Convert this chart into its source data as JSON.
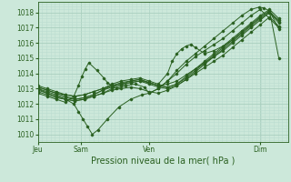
{
  "xlabel": "Pression niveau de la mer( hPa )",
  "bg_color": "#cce8da",
  "plot_bg_color": "#cce8da",
  "grid_color_major": "#aacfbf",
  "grid_color_minor": "#bbddd0",
  "line_color": "#2a6020",
  "ylim": [
    1009.5,
    1018.7
  ],
  "xlim": [
    0.0,
    1.08
  ],
  "xtick_labels": [
    "Jeu",
    "Sam",
    "Ven",
    "Dim"
  ],
  "xtick_positions": [
    0.0,
    0.185,
    0.48,
    0.96
  ],
  "ytick_values": [
    1010,
    1011,
    1012,
    1013,
    1014,
    1015,
    1016,
    1017,
    1018
  ],
  "lines": [
    {
      "x": [
        0.0,
        0.04,
        0.08,
        0.12,
        0.155,
        0.175,
        0.195,
        0.215,
        0.235,
        0.26,
        0.3,
        0.35,
        0.4,
        0.45,
        0.48,
        0.52,
        0.56,
        0.6,
        0.64,
        0.68,
        0.72,
        0.76,
        0.8,
        0.84,
        0.88,
        0.92,
        0.955,
        0.975,
        1.0,
        1.04
      ],
      "y": [
        1013.0,
        1012.7,
        1012.5,
        1012.3,
        1012.0,
        1011.5,
        1011.0,
        1010.5,
        1010.0,
        1010.3,
        1011.0,
        1011.8,
        1012.3,
        1012.6,
        1012.7,
        1013.0,
        1013.5,
        1014.2,
        1014.8,
        1015.3,
        1015.8,
        1016.3,
        1016.8,
        1017.3,
        1017.8,
        1018.2,
        1018.35,
        1018.3,
        1018.1,
        1016.9
      ]
    },
    {
      "x": [
        0.0,
        0.04,
        0.08,
        0.12,
        0.155,
        0.175,
        0.19,
        0.205,
        0.22,
        0.255,
        0.285,
        0.3,
        0.32,
        0.34,
        0.38,
        0.42,
        0.46,
        0.48,
        0.52,
        0.56,
        0.6,
        0.64,
        0.68,
        0.72,
        0.76,
        0.8,
        0.84,
        0.88,
        0.92,
        0.96,
        1.0,
        1.04
      ],
      "y": [
        1012.7,
        1012.5,
        1012.3,
        1012.1,
        1012.5,
        1013.2,
        1013.8,
        1014.3,
        1014.7,
        1014.2,
        1013.7,
        1013.4,
        1013.2,
        1013.0,
        1013.2,
        1013.3,
        1013.1,
        1012.7,
        1013.0,
        1013.5,
        1014.0,
        1014.6,
        1015.1,
        1015.5,
        1015.9,
        1016.3,
        1016.8,
        1017.3,
        1017.8,
        1018.2,
        1017.6,
        1017.0
      ]
    },
    {
      "x": [
        0.0,
        0.04,
        0.08,
        0.12,
        0.16,
        0.2,
        0.24,
        0.28,
        0.32,
        0.36,
        0.4,
        0.44,
        0.48,
        0.52,
        0.56,
        0.6,
        0.64,
        0.68,
        0.72,
        0.76,
        0.8,
        0.84,
        0.88,
        0.92,
        0.96,
        1.0,
        1.04
      ],
      "y": [
        1012.9,
        1012.7,
        1012.5,
        1012.3,
        1012.2,
        1012.3,
        1012.5,
        1012.7,
        1012.9,
        1013.0,
        1013.1,
        1013.0,
        1012.8,
        1012.7,
        1012.9,
        1013.2,
        1013.6,
        1014.0,
        1014.4,
        1014.8,
        1015.2,
        1015.7,
        1016.2,
        1016.7,
        1017.2,
        1017.7,
        1017.1
      ]
    },
    {
      "x": [
        0.0,
        0.04,
        0.08,
        0.12,
        0.16,
        0.2,
        0.24,
        0.28,
        0.32,
        0.36,
        0.4,
        0.44,
        0.48,
        0.52,
        0.56,
        0.6,
        0.64,
        0.68,
        0.72,
        0.76,
        0.8,
        0.84,
        0.88,
        0.92,
        0.96,
        1.0,
        1.04
      ],
      "y": [
        1013.1,
        1012.9,
        1012.7,
        1012.6,
        1012.5,
        1012.6,
        1012.8,
        1013.0,
        1013.2,
        1013.3,
        1013.4,
        1013.5,
        1013.4,
        1013.2,
        1013.3,
        1013.5,
        1013.9,
        1014.3,
        1014.7,
        1015.1,
        1015.5,
        1016.0,
        1016.5,
        1017.0,
        1017.5,
        1018.0,
        1017.5
      ]
    },
    {
      "x": [
        0.0,
        0.04,
        0.08,
        0.12,
        0.16,
        0.2,
        0.24,
        0.28,
        0.32,
        0.36,
        0.4,
        0.44,
        0.48,
        0.52,
        0.56,
        0.58,
        0.6,
        0.62,
        0.64,
        0.66,
        0.68,
        0.72,
        0.76,
        0.8,
        0.84,
        0.88,
        0.92,
        0.96,
        1.0,
        1.04
      ],
      "y": [
        1013.2,
        1013.0,
        1012.8,
        1012.6,
        1012.5,
        1012.6,
        1012.8,
        1013.0,
        1013.3,
        1013.5,
        1013.6,
        1013.7,
        1013.5,
        1013.3,
        1014.0,
        1014.8,
        1015.3,
        1015.6,
        1015.8,
        1015.9,
        1015.7,
        1015.3,
        1015.5,
        1015.8,
        1016.2,
        1016.7,
        1017.2,
        1017.7,
        1018.1,
        1015.0
      ]
    },
    {
      "x": [
        0.0,
        0.04,
        0.08,
        0.12,
        0.16,
        0.2,
        0.24,
        0.28,
        0.32,
        0.36,
        0.4,
        0.44,
        0.48,
        0.52,
        0.56,
        0.6,
        0.64,
        0.68,
        0.72,
        0.76,
        0.8,
        0.84,
        0.88,
        0.92,
        0.96,
        1.0,
        1.04
      ],
      "y": [
        1012.8,
        1012.6,
        1012.4,
        1012.3,
        1012.2,
        1012.3,
        1012.5,
        1012.7,
        1013.0,
        1013.2,
        1013.4,
        1013.5,
        1013.3,
        1013.1,
        1013.0,
        1013.2,
        1013.6,
        1014.1,
        1014.6,
        1015.1,
        1015.6,
        1016.1,
        1016.6,
        1017.1,
        1017.6,
        1018.0,
        1017.3
      ]
    },
    {
      "x": [
        0.0,
        0.04,
        0.08,
        0.12,
        0.16,
        0.2,
        0.24,
        0.28,
        0.32,
        0.36,
        0.4,
        0.44,
        0.48,
        0.52,
        0.56,
        0.6,
        0.64,
        0.68,
        0.72,
        0.76,
        0.8,
        0.84,
        0.88,
        0.92,
        0.96,
        1.0,
        1.04
      ],
      "y": [
        1013.0,
        1012.8,
        1012.6,
        1012.4,
        1012.3,
        1012.4,
        1012.6,
        1012.9,
        1013.1,
        1013.3,
        1013.5,
        1013.6,
        1013.4,
        1013.2,
        1013.1,
        1013.3,
        1013.7,
        1014.2,
        1014.7,
        1015.2,
        1015.7,
        1016.2,
        1016.7,
        1017.2,
        1017.7,
        1018.1,
        1017.4
      ]
    },
    {
      "x": [
        0.0,
        0.04,
        0.08,
        0.12,
        0.16,
        0.2,
        0.24,
        0.28,
        0.32,
        0.36,
        0.4,
        0.44,
        0.48,
        0.52,
        0.56,
        0.6,
        0.64,
        0.68,
        0.72,
        0.76,
        0.8,
        0.84,
        0.88,
        0.92,
        0.96,
        1.0,
        1.04
      ],
      "y": [
        1013.1,
        1012.9,
        1012.7,
        1012.5,
        1012.3,
        1012.4,
        1012.6,
        1012.9,
        1013.2,
        1013.4,
        1013.5,
        1013.6,
        1013.4,
        1013.2,
        1013.1,
        1013.3,
        1013.8,
        1014.3,
        1014.8,
        1015.3,
        1015.8,
        1016.3,
        1016.8,
        1017.3,
        1017.8,
        1018.2,
        1017.6
      ]
    }
  ]
}
